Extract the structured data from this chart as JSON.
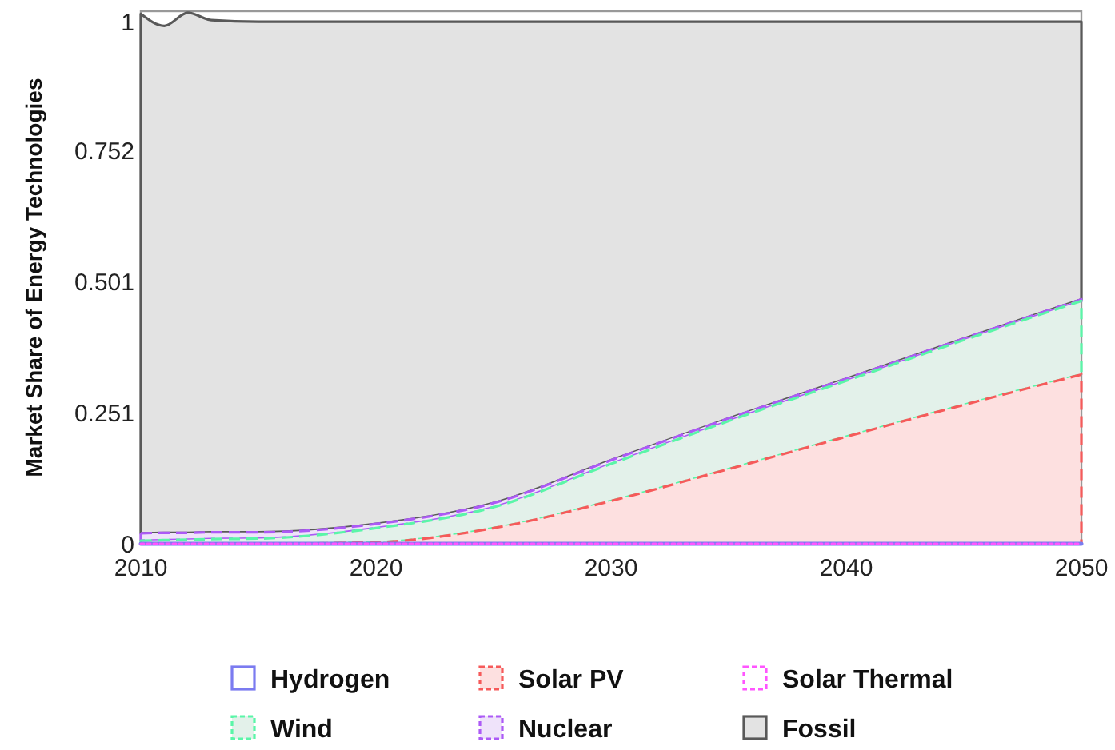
{
  "chart_data": {
    "type": "area",
    "stacked": true,
    "ylabel": "Market Share of Energy Technologies",
    "x": [
      2010,
      2011,
      2012,
      2013,
      2015,
      2020,
      2025,
      2030,
      2035,
      2040,
      2045,
      2050
    ],
    "xlim": [
      2010,
      2050
    ],
    "xticks": [
      2010,
      2020,
      2030,
      2040,
      2050
    ],
    "ylim": [
      0,
      1.02
    ],
    "yticks": [
      0,
      0.251,
      0.501,
      0.752,
      1
    ],
    "grid": false,
    "legend": "bottom",
    "series": [
      {
        "name": "Hydrogen",
        "type": "line",
        "color": "#7b7bf0",
        "line_style": "solid",
        "values": [
          0,
          0,
          0,
          0,
          0,
          0,
          0,
          0,
          0,
          0,
          0,
          0
        ]
      },
      {
        "name": "Solar PV",
        "color": "#fde0e0",
        "line_style": "dashed",
        "values": [
          0,
          0,
          0,
          0,
          0,
          0.003,
          0.03,
          0.082,
          0.143,
          0.205,
          0.266,
          0.324
        ]
      },
      {
        "name": "Solar Thermal",
        "type": "line",
        "color": "#ff55ff",
        "line_style": "dotted",
        "values": [
          0,
          0,
          0,
          0,
          0,
          0,
          0,
          0,
          0,
          0,
          0,
          0
        ]
      },
      {
        "name": "Wind",
        "color": "#e3f1ea",
        "line_style": "dashed",
        "values": [
          0.006,
          0.007,
          0.008,
          0.009,
          0.01,
          0.027,
          0.04,
          0.071,
          0.092,
          0.107,
          0.124,
          0.141
        ]
      },
      {
        "name": "Nuclear",
        "color": "#efe3fa",
        "line_style": "dashed",
        "values": [
          0.014,
          0.014,
          0.013,
          0.013,
          0.012,
          0.008,
          0.008,
          0.007,
          0.005,
          0.004,
          0.003,
          0.003
        ]
      },
      {
        "name": "Fossil",
        "color": "#e3e3e3",
        "line_style": "solid",
        "values": [
          0.995,
          0.971,
          0.996,
          0.981,
          0.978,
          0.962,
          0.922,
          0.84,
          0.76,
          0.684,
          0.607,
          0.532
        ]
      }
    ]
  }
}
